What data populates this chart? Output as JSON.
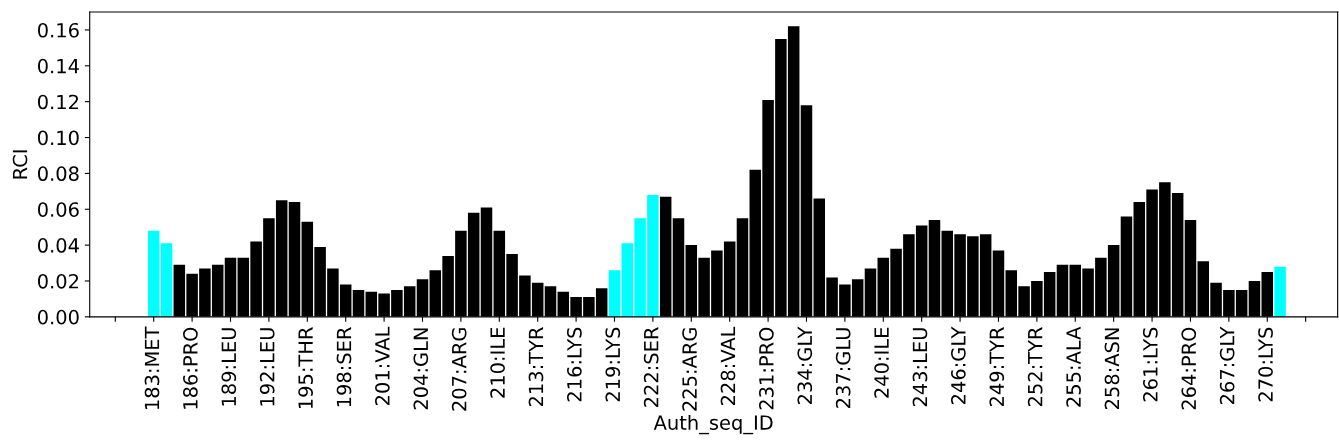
{
  "chart_data": {
    "type": "bar",
    "xlabel": "Auth_seq_ID",
    "ylabel": "RCI",
    "x": [
      183,
      184,
      185,
      186,
      187,
      188,
      189,
      190,
      191,
      192,
      193,
      194,
      195,
      196,
      197,
      198,
      199,
      200,
      201,
      202,
      203,
      204,
      205,
      206,
      207,
      208,
      209,
      210,
      211,
      212,
      213,
      214,
      215,
      216,
      217,
      218,
      219,
      220,
      221,
      222,
      223,
      224,
      225,
      226,
      227,
      228,
      229,
      230,
      231,
      232,
      233,
      234,
      235,
      236,
      237,
      238,
      239,
      240,
      241,
      242,
      243,
      244,
      245,
      246,
      247,
      248,
      249,
      250,
      251,
      252,
      253,
      254,
      255,
      256,
      257,
      258,
      259,
      260,
      261,
      262,
      263,
      264,
      265,
      266,
      267,
      268,
      269,
      270,
      271
    ],
    "values": [
      0.048,
      0.041,
      0.029,
      0.024,
      0.027,
      0.029,
      0.033,
      0.033,
      0.042,
      0.055,
      0.065,
      0.064,
      0.053,
      0.039,
      0.027,
      0.018,
      0.015,
      0.014,
      0.013,
      0.015,
      0.017,
      0.021,
      0.026,
      0.034,
      0.048,
      0.058,
      0.061,
      0.048,
      0.035,
      0.023,
      0.019,
      0.017,
      0.014,
      0.011,
      0.011,
      0.016,
      0.026,
      0.041,
      0.055,
      0.068,
      0.067,
      0.055,
      0.04,
      0.033,
      0.037,
      0.042,
      0.055,
      0.082,
      0.121,
      0.155,
      0.162,
      0.118,
      0.066,
      0.022,
      0.018,
      0.021,
      0.027,
      0.033,
      0.038,
      0.046,
      0.051,
      0.054,
      0.048,
      0.046,
      0.045,
      0.046,
      0.037,
      0.026,
      0.017,
      0.02,
      0.025,
      0.029,
      0.029,
      0.027,
      0.033,
      0.04,
      0.056,
      0.064,
      0.071,
      0.075,
      0.069,
      0.054,
      0.031,
      0.019,
      0.015,
      0.015,
      0.02,
      0.025,
      0.028
    ],
    "colors": [
      "#00ffff",
      "#00ffff",
      "#000000",
      "#000000",
      "#000000",
      "#000000",
      "#000000",
      "#000000",
      "#000000",
      "#000000",
      "#000000",
      "#000000",
      "#000000",
      "#000000",
      "#000000",
      "#000000",
      "#000000",
      "#000000",
      "#000000",
      "#000000",
      "#000000",
      "#000000",
      "#000000",
      "#000000",
      "#000000",
      "#000000",
      "#000000",
      "#000000",
      "#000000",
      "#000000",
      "#000000",
      "#000000",
      "#000000",
      "#000000",
      "#000000",
      "#000000",
      "#00ffff",
      "#00ffff",
      "#00ffff",
      "#00ffff",
      "#000000",
      "#000000",
      "#000000",
      "#000000",
      "#000000",
      "#000000",
      "#000000",
      "#000000",
      "#000000",
      "#000000",
      "#000000",
      "#000000",
      "#000000",
      "#000000",
      "#000000",
      "#000000",
      "#000000",
      "#000000",
      "#000000",
      "#000000",
      "#000000",
      "#000000",
      "#000000",
      "#000000",
      "#000000",
      "#000000",
      "#000000",
      "#000000",
      "#000000",
      "#000000",
      "#000000",
      "#000000",
      "#000000",
      "#000000",
      "#000000",
      "#000000",
      "#000000",
      "#000000",
      "#000000",
      "#000000",
      "#000000",
      "#000000",
      "#000000",
      "#000000",
      "#000000",
      "#000000",
      "#000000",
      "#000000",
      "#00ffff"
    ],
    "xlim": [
      178,
      275.5
    ],
    "xticks": [
      {
        "value": 180,
        "label": null
      },
      {
        "value": 183,
        "label": "183:MET"
      },
      {
        "value": 186,
        "label": "186:PRO"
      },
      {
        "value": 189,
        "label": "189:LEU"
      },
      {
        "value": 192,
        "label": "192:LEU"
      },
      {
        "value": 195,
        "label": "195:THR"
      },
      {
        "value": 198,
        "label": "198:SER"
      },
      {
        "value": 201,
        "label": "201:VAL"
      },
      {
        "value": 204,
        "label": "204:GLN"
      },
      {
        "value": 207,
        "label": "207:ARG"
      },
      {
        "value": 210,
        "label": "210:ILE"
      },
      {
        "value": 213,
        "label": "213:TYR"
      },
      {
        "value": 216,
        "label": "216:LYS"
      },
      {
        "value": 219,
        "label": "219:LYS"
      },
      {
        "value": 222,
        "label": "222:SER"
      },
      {
        "value": 225,
        "label": "225:ARG"
      },
      {
        "value": 228,
        "label": "228:VAL"
      },
      {
        "value": 231,
        "label": "231:PRO"
      },
      {
        "value": 234,
        "label": "234:GLY"
      },
      {
        "value": 237,
        "label": "237:GLU"
      },
      {
        "value": 240,
        "label": "240:ILE"
      },
      {
        "value": 243,
        "label": "243:LEU"
      },
      {
        "value": 246,
        "label": "246:GLY"
      },
      {
        "value": 249,
        "label": "249:TYR"
      },
      {
        "value": 252,
        "label": "252:TYR"
      },
      {
        "value": 255,
        "label": "255:ALA"
      },
      {
        "value": 258,
        "label": "258:ASN"
      },
      {
        "value": 261,
        "label": "261:LYS"
      },
      {
        "value": 264,
        "label": "264:PRO"
      },
      {
        "value": 267,
        "label": "267:GLY"
      },
      {
        "value": 270,
        "label": "270:LYS"
      },
      {
        "value": 273,
        "label": null
      }
    ],
    "ylim": [
      0,
      0.17
    ],
    "yticks": [
      {
        "value": 0,
        "label": "0.00"
      },
      {
        "value": 0.02,
        "label": "0.02"
      },
      {
        "value": 0.04,
        "label": "0.04"
      },
      {
        "value": 0.06,
        "label": "0.06"
      },
      {
        "value": 0.08,
        "label": "0.08"
      },
      {
        "value": 0.1,
        "label": "0.10"
      },
      {
        "value": 0.12,
        "label": "0.12"
      },
      {
        "value": 0.14,
        "label": "0.14"
      },
      {
        "value": 0.16,
        "label": "0.16"
      }
    ]
  }
}
